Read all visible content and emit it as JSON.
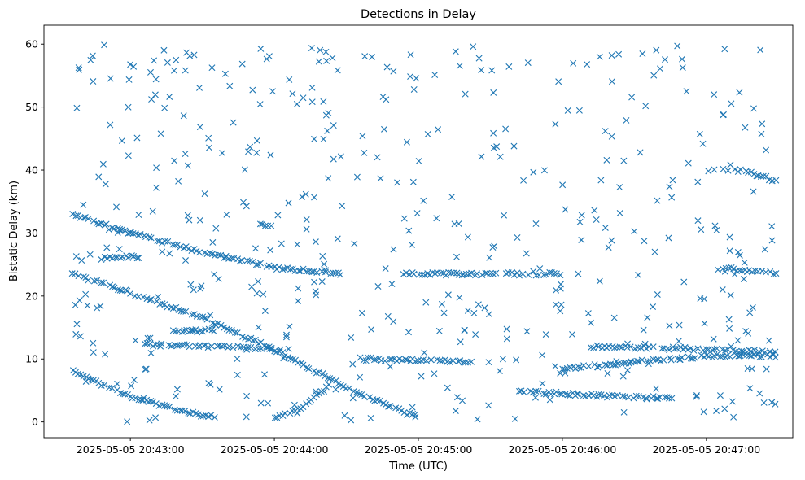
{
  "chart_data": {
    "type": "scatter",
    "title": "Detections in Delay",
    "xlabel": "Time (UTC)",
    "ylabel": "Bistatic Delay (km)",
    "marker": "x",
    "color": "#1f77b4",
    "grid": false,
    "legend": "none",
    "xlim": [
      "2025-05-05 20:42:24",
      "2025-05-05 20:47:36"
    ],
    "ylim": [
      -2.5,
      63
    ],
    "x_ticks": [
      "2025-05-05 20:43:00",
      "2025-05-05 20:44:00",
      "2025-05-05 20:45:00",
      "2025-05-05 20:46:00",
      "2025-05-05 20:47:00"
    ],
    "y_ticks": [
      0,
      10,
      20,
      30,
      40,
      50,
      60
    ],
    "time_start": "2025-05-05 20:42:36",
    "time_end": "2025-05-05 20:47:30",
    "tracks": [
      {
        "description": "upper descending track",
        "points": [
          [
            "20:42:36",
            33.0
          ],
          [
            "20:43:00",
            30.0
          ],
          [
            "20:43:30",
            27.0
          ],
          [
            "20:44:00",
            24.5
          ],
          [
            "20:44:30",
            23.5
          ]
        ]
      },
      {
        "description": "main descending track",
        "points": [
          [
            "20:42:36",
            23.5
          ],
          [
            "20:43:00",
            20.5
          ],
          [
            "20:43:30",
            16.5
          ],
          [
            "20:44:00",
            11.5
          ],
          [
            "20:44:30",
            5.5
          ],
          [
            "20:44:54",
            1.5
          ],
          [
            "20:45:00",
            0.8
          ]
        ]
      },
      {
        "description": "lower descending track",
        "points": [
          [
            "20:42:36",
            8.0
          ],
          [
            "20:43:00",
            4.0
          ],
          [
            "20:43:24",
            1.5
          ],
          [
            "20:43:36",
            0.7
          ]
        ]
      },
      {
        "description": "near-zero rising track",
        "points": [
          [
            "20:44:00",
            0.5
          ],
          [
            "20:44:12",
            2.5
          ],
          [
            "20:44:24",
            6.0
          ]
        ]
      },
      {
        "description": "track at 12 km",
        "points": [
          [
            "20:43:06",
            12.3
          ],
          [
            "20:43:36",
            12.0
          ],
          [
            "20:44:00",
            11.5
          ]
        ]
      },
      {
        "description": "track at 23.5 km",
        "points": [
          [
            "20:44:54",
            23.5
          ],
          [
            "20:45:30",
            23.5
          ],
          [
            "20:46:00",
            23.5
          ]
        ]
      },
      {
        "description": "track at 10 km",
        "points": [
          [
            "20:44:36",
            10.0
          ],
          [
            "20:45:00",
            9.8
          ],
          [
            "20:45:24",
            9.5
          ]
        ]
      },
      {
        "description": "track at 12 km late",
        "points": [
          [
            "20:46:12",
            12.0
          ],
          [
            "20:46:36",
            11.8
          ],
          [
            "20:47:00",
            11.5
          ],
          [
            "20:47:30",
            11.0
          ]
        ]
      },
      {
        "description": "track at 4.5 km",
        "points": [
          [
            "20:45:42",
            4.8
          ],
          [
            "20:46:00",
            4.5
          ],
          [
            "20:46:24",
            4.0
          ],
          [
            "20:46:48",
            3.7
          ]
        ]
      },
      {
        "description": "rising track at 9 km",
        "points": [
          [
            "20:46:00",
            8.5
          ],
          [
            "20:46:30",
            9.5
          ],
          [
            "20:47:00",
            10.5
          ],
          [
            "20:47:30",
            10.5
          ]
        ]
      },
      {
        "description": "track at 40 km",
        "points": [
          [
            "20:47:12",
            40.0
          ],
          [
            "20:47:24",
            39.0
          ],
          [
            "20:47:30",
            38.0
          ]
        ]
      },
      {
        "description": "track at 24 km late",
        "points": [
          [
            "20:47:06",
            24.5
          ],
          [
            "20:47:30",
            23.5
          ]
        ]
      },
      {
        "description": "track at 26 km",
        "points": [
          [
            "20:42:48",
            26.0
          ],
          [
            "20:43:06",
            26.3
          ]
        ]
      },
      {
        "description": "track at 31 km",
        "points": [
          [
            "20:43:54",
            31.5
          ],
          [
            "20:44:00",
            31.0
          ]
        ]
      },
      {
        "description": "track at 14.5 km",
        "points": [
          [
            "20:43:18",
            14.5
          ],
          [
            "20:43:36",
            14.5
          ]
        ]
      }
    ],
    "noise": {
      "count": 480,
      "y_range": [
        0,
        60
      ]
    }
  }
}
